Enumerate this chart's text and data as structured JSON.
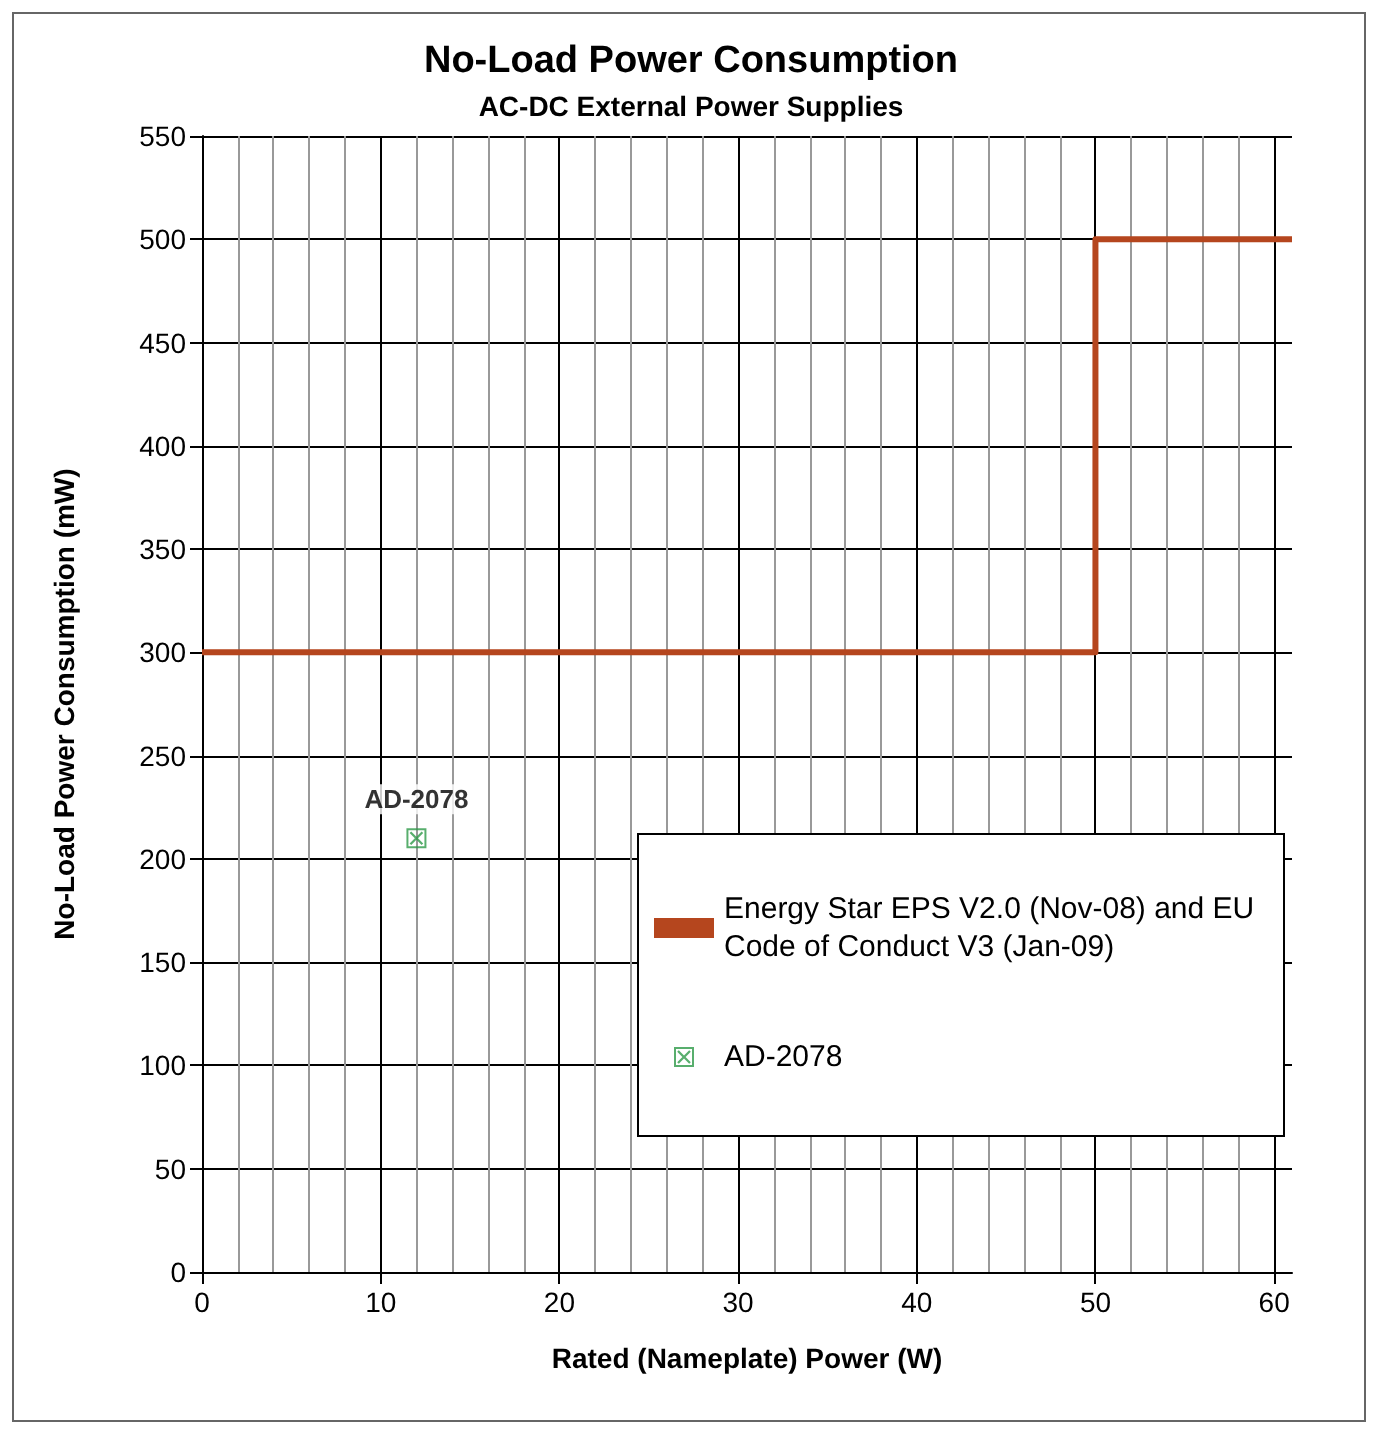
{
  "chart_data": {
    "type": "line",
    "title": "No-Load Power Consumption",
    "subtitle": "AC-DC External Power Supplies",
    "xlabel": "Rated (Nameplate) Power (W)",
    "ylabel": "No-Load Power Consumption (mW)",
    "series": [
      {
        "name": "Energy Star EPS V2.0 (Nov-08) and EU Code of Conduct V3 (Jan-09)",
        "color": "#b5461e",
        "x": [
          0,
          50,
          50,
          61
        ],
        "values": [
          300,
          300,
          500,
          500
        ],
        "marker": "none",
        "line_style": "solid"
      },
      {
        "name": "AD-2078",
        "type": "scatter",
        "color": "#2e9a48",
        "x": [
          12
        ],
        "values": [
          210
        ],
        "marker": "square"
      }
    ],
    "annotations": [
      {
        "text": "AD-2078",
        "x": 12,
        "y": 210
      }
    ],
    "xlim": [
      0,
      61
    ],
    "xticks": [
      0,
      10,
      20,
      30,
      40,
      50,
      60
    ],
    "ylim": [
      0,
      550
    ],
    "yticks": [
      0,
      50,
      100,
      150,
      200,
      250,
      300,
      350,
      400,
      450,
      500,
      550
    ],
    "grid": true,
    "legend": "bottom right"
  }
}
